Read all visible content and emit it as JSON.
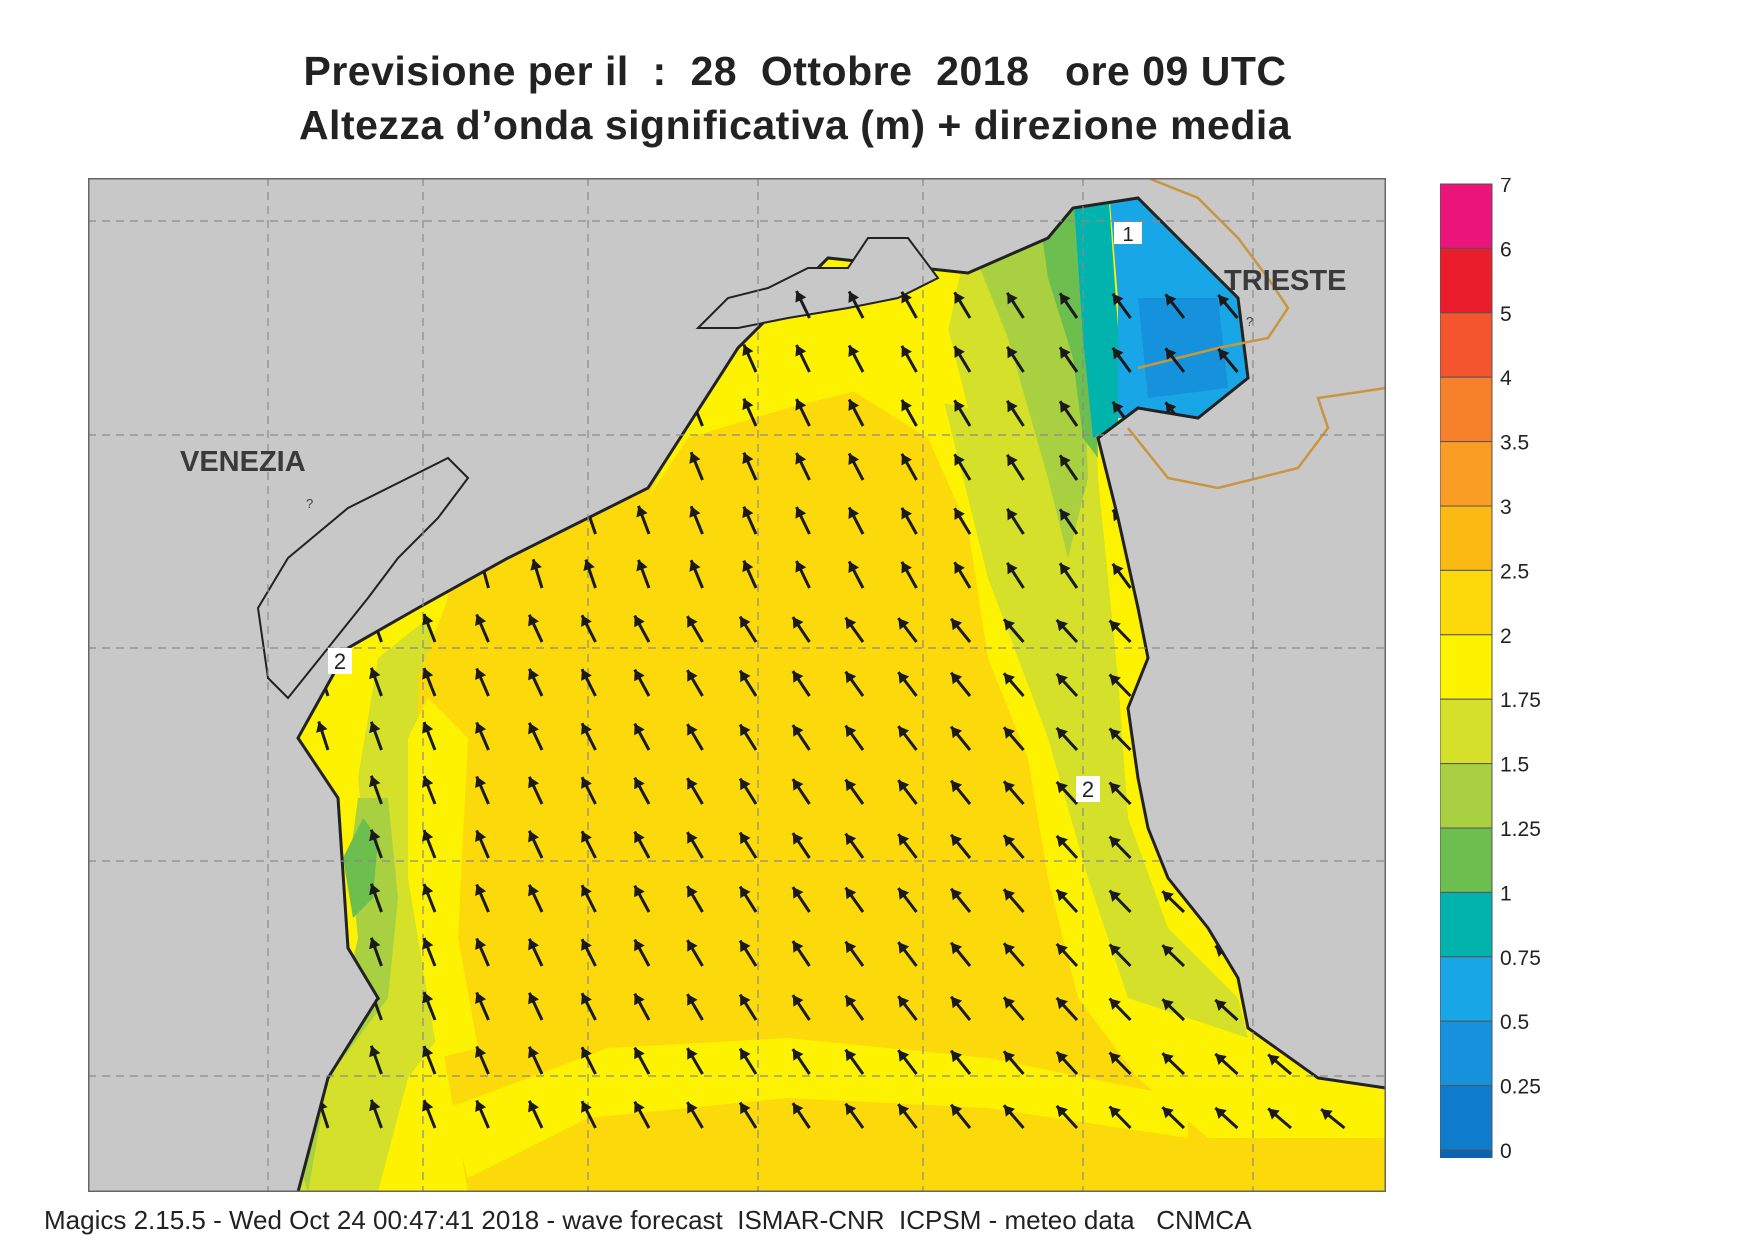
{
  "header": {
    "line1": "Previsione per il  :  28  Ottobre  2018   ore 09 UTC",
    "line2": "Altezza d’onda significativa (m) + direzione media"
  },
  "map": {
    "city_labels": {
      "venezia": "VENEZIA",
      "trieste": "TRIESTE"
    },
    "contour_labels": [
      "1",
      "2",
      "2"
    ],
    "unknown_marks": [
      "?",
      "?"
    ],
    "colors": {
      "land": "#c8c8c8",
      "coastline": "#222222",
      "border": "#c99640",
      "grid": "#8a8a8a",
      "wave_1_25": "#6cbf4e",
      "wave_1_5": "#a8d040",
      "wave_1_75": "#d4e02a",
      "wave_2": "#fdf200",
      "wave_2_5": "#fcd90a",
      "wave_1": "#00b3ad",
      "wave_0_75": "#19a6e6",
      "wave_0_5": "#1691db"
    }
  },
  "legend": {
    "title": "",
    "labels": [
      "7",
      "6",
      "5",
      "4",
      "3.5",
      "3",
      "2.5",
      "2",
      "1.75",
      "1.5",
      "1.25",
      "1",
      "0.75",
      "0.5",
      "0.25",
      "0"
    ],
    "colors": [
      "#ea147a",
      "#ea1d2d",
      "#f4552e",
      "#f7812a",
      "#f99d25",
      "#fbb913",
      "#fcd90a",
      "#fdf200",
      "#d4e02a",
      "#a8d040",
      "#6cbf4e",
      "#00b3ad",
      "#19a6e6",
      "#1691db",
      "#0d7dcb",
      "#0a63b4"
    ]
  },
  "footer": {
    "credit": "Magics 2.15.5 - Wed Oct 24 00:47:41 2018 - wave forecast  ISMAR-CNR  ICPSM - meteo data   CNMCA"
  }
}
